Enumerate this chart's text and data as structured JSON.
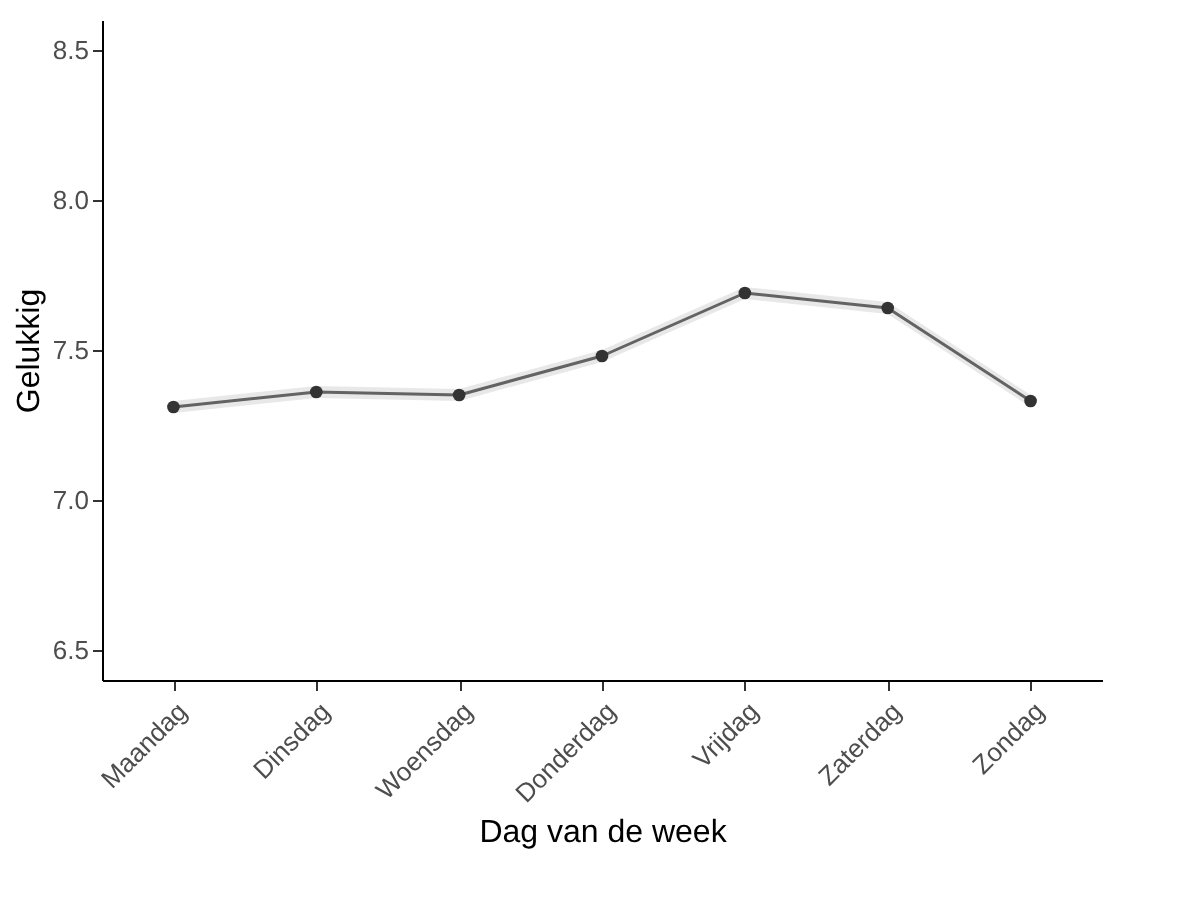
{
  "chart_data": {
    "type": "line",
    "xlabel": "Dag van de week",
    "ylabel": "Gelukkig",
    "categories": [
      "Maandag",
      "Dinsdag",
      "Woensdag",
      "Donderdag",
      "Vrijdag",
      "Zaterdag",
      "Zondag"
    ],
    "series": [
      {
        "color": "#333333",
        "values": [
          7.31,
          7.36,
          7.35,
          7.48,
          7.69,
          7.64,
          7.33
        ],
        "lower": [
          7.29,
          7.34,
          7.33,
          7.46,
          7.67,
          7.62,
          7.31
        ],
        "upper": [
          7.33,
          7.38,
          7.37,
          7.5,
          7.71,
          7.66,
          7.35
        ]
      }
    ],
    "ylim": [
      6.4,
      8.6
    ],
    "yticks": [
      6.5,
      {
        "value": 7,
        "label": "7.0"
      },
      7.5,
      {
        "value": 8,
        "label": "8.0"
      },
      8.5
    ],
    "marker": "circle",
    "line_style": "solid",
    "grid": false,
    "legend": false
  }
}
